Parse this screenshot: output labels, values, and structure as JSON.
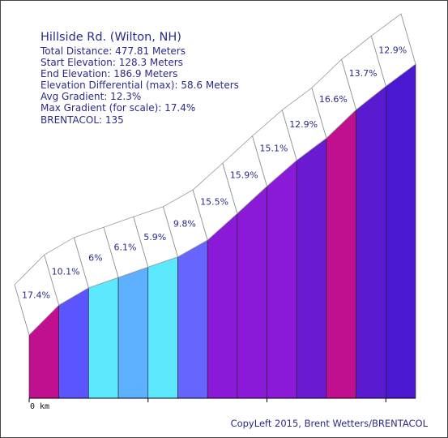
{
  "info": {
    "title": "Hillside Rd. (Wilton, NH)",
    "lines": [
      "Total Distance: 477.81 Meters",
      "Start Elevation: 128.3 Meters",
      "End Elevation: 186.9 Meters",
      "Elevation Differential (max): 58.6 Meters",
      "Avg Gradient: 12.3%",
      "Max Gradient (for scale): 17.4%",
      "BRENTACOL: 135"
    ]
  },
  "copyleft": "CopyLeft 2015, Brent Wetters/BRENTACOL",
  "chart_data": {
    "type": "area",
    "x_tick_label": "0 km",
    "segment_distance_m": 25,
    "segments": [
      {
        "gradient_label": "17.4%",
        "gradient": 17.4,
        "color": "#c0108f"
      },
      {
        "gradient_label": "10.1%",
        "gradient": 10.1,
        "color": "#5a55ff"
      },
      {
        "gradient_label": "6%",
        "gradient": 6.0,
        "color": "#5ce8ff"
      },
      {
        "gradient_label": "6.1%",
        "gradient": 6.1,
        "color": "#5cb0ff"
      },
      {
        "gradient_label": "5.9%",
        "gradient": 5.9,
        "color": "#5ce8ff"
      },
      {
        "gradient_label": "9.8%",
        "gradient": 9.8,
        "color": "#6666ff"
      },
      {
        "gradient_label": "15.5%",
        "gradient": 15.5,
        "color": "#8a1ad8"
      },
      {
        "gradient_label": "15.9%",
        "gradient": 15.9,
        "color": "#8a1ad8"
      },
      {
        "gradient_label": "15.1%",
        "gradient": 15.1,
        "color": "#8a1ad8"
      },
      {
        "gradient_label": "12.9%",
        "gradient": 12.9,
        "color": "#6a1ad0"
      },
      {
        "gradient_label": "16.6%",
        "gradient": 16.6,
        "color": "#c0108f"
      },
      {
        "gradient_label": "13.7%",
        "gradient": 13.7,
        "color": "#5a1ad0"
      },
      {
        "gradient_label": "12.9%",
        "gradient": 12.9,
        "color": "#4a18d0"
      }
    ],
    "start_elevation_m": 128.3,
    "end_elevation_m": 186.9
  }
}
